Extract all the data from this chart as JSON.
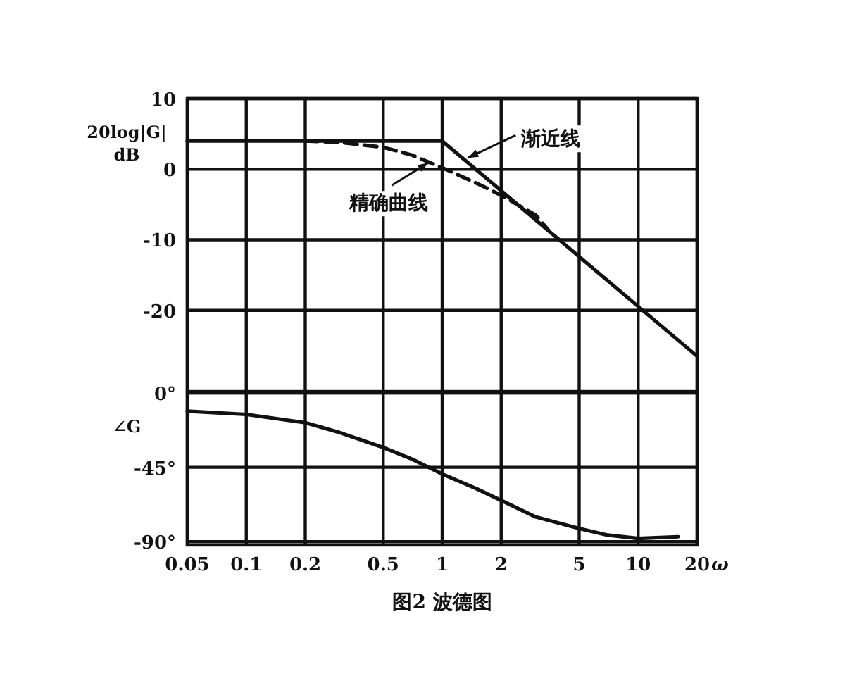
{
  "chart_data": [
    {
      "type": "line",
      "ylabel": "20log|G| dB",
      "log": "x",
      "xlim": [
        0.05,
        20
      ],
      "xticks": [
        0.05,
        0.1,
        0.2,
        0.5,
        1,
        2,
        5,
        10,
        20
      ],
      "ylim": [
        -31.5,
        10
      ],
      "yticks": [
        10,
        0,
        -10,
        -20
      ],
      "grid": true,
      "tick_labels": "y",
      "series": [
        {
          "color": "#111111",
          "line_style": "solid",
          "x": [
            0.05,
            1,
            20
          ],
          "values": [
            4,
            4,
            -26.5
          ]
        },
        {
          "color": "#111111",
          "line_style": "dashed",
          "x": [
            0.2,
            0.3,
            0.5,
            0.7,
            1,
            1.5,
            2,
            3,
            3.5
          ],
          "values": [
            4,
            3.8,
            3.1,
            2,
            0.2,
            -2,
            -3.7,
            -6.5,
            -8.7
          ]
        }
      ],
      "annotations": [
        {
          "text": "渐近线",
          "x": 1.35,
          "y": 1.6
        },
        {
          "text": "精确曲线",
          "x": 0.85,
          "y": 0.9
        }
      ]
    },
    {
      "type": "line",
      "ylabel": "∠G",
      "xlabel": "ω",
      "log": "x",
      "xlim": [
        0.05,
        20
      ],
      "xticks": [
        0.05,
        0.1,
        0.2,
        0.5,
        1,
        2,
        5,
        10,
        20
      ],
      "ylim": [
        -92,
        0
      ],
      "yticks": [
        {
          "value": 0,
          "label": "0°"
        },
        {
          "value": -45,
          "label": "-45°"
        },
        {
          "value": -90,
          "label": "-90°"
        }
      ],
      "grid": true,
      "series": [
        {
          "color": "#111111",
          "line_style": "solid",
          "x": [
            0.05,
            0.1,
            0.2,
            0.3,
            0.5,
            0.7,
            1,
            1.5,
            2,
            3,
            5,
            7,
            10,
            16
          ],
          "values": [
            -11,
            -13,
            -18,
            -24,
            -33,
            -40,
            -49,
            -58,
            -65,
            -75,
            -82,
            -86,
            -88,
            -87
          ]
        }
      ],
      "annotations": [
        "图2  波德图"
      ]
    }
  ]
}
